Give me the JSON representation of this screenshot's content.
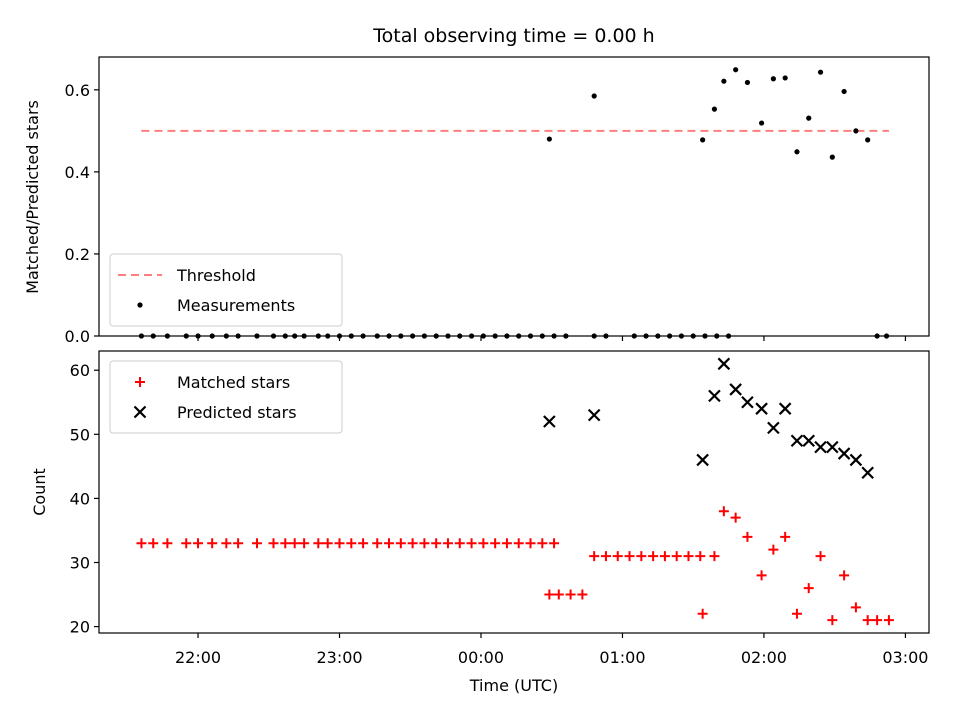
{
  "chart_data": [
    {
      "type": "scatter",
      "title": "Total observing time = 0.00 h",
      "ylabel": "Matched/Predicted stars",
      "xlabel": "",
      "xlim": [
        "21:18",
        "03:10"
      ],
      "ylim": [
        0,
        0.68
      ],
      "yticks": [
        0.0,
        0.2,
        0.4,
        0.6
      ],
      "ytick_labels": [
        "0.0",
        "0.2",
        "0.4",
        "0.6"
      ],
      "grid": false,
      "legend_position": "lower-left",
      "threshold": {
        "name": "Threshold",
        "y": 0.5,
        "x": [
          "21:36",
          "02:53"
        ],
        "color": "#ff7f7f",
        "style": "dashed"
      },
      "series": [
        {
          "name": "Measurements",
          "color": "#000000",
          "marker": "dot",
          "points": [
            [
              "21:36",
              0
            ],
            [
              "21:41",
              0
            ],
            [
              "21:47",
              0
            ],
            [
              "21:55",
              0
            ],
            [
              "22:00",
              0
            ],
            [
              "22:06",
              0
            ],
            [
              "22:12",
              0
            ],
            [
              "22:17",
              0
            ],
            [
              "22:25",
              0
            ],
            [
              "22:32",
              0
            ],
            [
              "22:37",
              0
            ],
            [
              "22:41",
              0
            ],
            [
              "22:45",
              0
            ],
            [
              "22:51",
              0
            ],
            [
              "22:55",
              0
            ],
            [
              "23:00",
              0
            ],
            [
              "23:05",
              0
            ],
            [
              "23:10",
              0
            ],
            [
              "23:16",
              0
            ],
            [
              "23:21",
              0
            ],
            [
              "23:26",
              0
            ],
            [
              "23:31",
              0
            ],
            [
              "23:36",
              0
            ],
            [
              "23:41",
              0
            ],
            [
              "23:46",
              0
            ],
            [
              "23:51",
              0
            ],
            [
              "23:56",
              0
            ],
            [
              "00:01",
              0
            ],
            [
              "00:06",
              0
            ],
            [
              "00:11",
              0
            ],
            [
              "00:16",
              0
            ],
            [
              "00:21",
              0
            ],
            [
              "00:26",
              0
            ],
            [
              "00:31",
              0
            ],
            [
              "00:36",
              0
            ],
            [
              "00:48",
              0
            ],
            [
              "00:53",
              0
            ],
            [
              "01:05",
              0
            ],
            [
              "01:10",
              0
            ],
            [
              "01:15",
              0
            ],
            [
              "01:20",
              0
            ],
            [
              "01:25",
              0
            ],
            [
              "01:30",
              0
            ],
            [
              "01:35",
              0
            ],
            [
              "01:40",
              0
            ],
            [
              "01:45",
              0
            ],
            [
              "02:48",
              0
            ],
            [
              "02:52",
              0
            ],
            [
              "00:29",
              0.48
            ],
            [
              "00:48",
              0.585
            ],
            [
              "01:34",
              0.478
            ],
            [
              "01:39",
              0.553
            ],
            [
              "01:43",
              0.621
            ],
            [
              "01:48",
              0.649
            ],
            [
              "01:53",
              0.618
            ],
            [
              "01:59",
              0.519
            ],
            [
              "02:04",
              0.627
            ],
            [
              "02:09",
              0.629
            ],
            [
              "02:19",
              0.531
            ],
            [
              "02:14",
              0.449
            ],
            [
              "02:24",
              0.643
            ],
            [
              "02:29",
              0.436
            ],
            [
              "02:34",
              0.596
            ],
            [
              "02:39",
              0.5
            ],
            [
              "02:44",
              0.478
            ]
          ]
        }
      ]
    },
    {
      "type": "scatter",
      "title": "",
      "xlabel": "Time (UTC)",
      "ylabel": "Count",
      "xlim": [
        "21:18",
        "03:10"
      ],
      "ylim": [
        19,
        63
      ],
      "yticks": [
        20,
        30,
        40,
        50,
        60
      ],
      "ytick_labels": [
        "20",
        "30",
        "40",
        "50",
        "60"
      ],
      "xticks": [
        "22:00",
        "23:00",
        "00:00",
        "01:00",
        "02:00",
        "03:00"
      ],
      "grid": false,
      "legend_position": "upper-left",
      "series": [
        {
          "name": "Matched stars",
          "color": "#ff0000",
          "marker": "plus",
          "points": [
            [
              "21:36",
              33
            ],
            [
              "21:41",
              33
            ],
            [
              "21:47",
              33
            ],
            [
              "21:55",
              33
            ],
            [
              "22:00",
              33
            ],
            [
              "22:06",
              33
            ],
            [
              "22:12",
              33
            ],
            [
              "22:17",
              33
            ],
            [
              "22:25",
              33
            ],
            [
              "22:32",
              33
            ],
            [
              "22:37",
              33
            ],
            [
              "22:41",
              33
            ],
            [
              "22:45",
              33
            ],
            [
              "22:51",
              33
            ],
            [
              "22:55",
              33
            ],
            [
              "23:00",
              33
            ],
            [
              "23:05",
              33
            ],
            [
              "23:10",
              33
            ],
            [
              "23:16",
              33
            ],
            [
              "23:21",
              33
            ],
            [
              "23:26",
              33
            ],
            [
              "23:31",
              33
            ],
            [
              "23:36",
              33
            ],
            [
              "23:41",
              33
            ],
            [
              "23:46",
              33
            ],
            [
              "23:51",
              33
            ],
            [
              "23:56",
              33
            ],
            [
              "00:01",
              33
            ],
            [
              "00:06",
              33
            ],
            [
              "00:11",
              33
            ],
            [
              "00:16",
              33
            ],
            [
              "00:21",
              33
            ],
            [
              "00:26",
              33
            ],
            [
              "00:31",
              33
            ],
            [
              "00:29",
              25
            ],
            [
              "00:33",
              25
            ],
            [
              "00:38",
              25
            ],
            [
              "00:43",
              25
            ],
            [
              "00:48",
              31
            ],
            [
              "00:53",
              31
            ],
            [
              "00:58",
              31
            ],
            [
              "01:03",
              31
            ],
            [
              "01:08",
              31
            ],
            [
              "01:13",
              31
            ],
            [
              "01:18",
              31
            ],
            [
              "01:23",
              31
            ],
            [
              "01:28",
              31
            ],
            [
              "01:33",
              31
            ],
            [
              "01:34",
              22
            ],
            [
              "01:39",
              31
            ],
            [
              "01:43",
              38
            ],
            [
              "01:48",
              37
            ],
            [
              "01:53",
              34
            ],
            [
              "01:59",
              28
            ],
            [
              "02:04",
              32
            ],
            [
              "02:09",
              34
            ],
            [
              "02:14",
              22
            ],
            [
              "02:19",
              26
            ],
            [
              "02:24",
              31
            ],
            [
              "02:29",
              21
            ],
            [
              "02:34",
              28
            ],
            [
              "02:39",
              23
            ],
            [
              "02:44",
              21
            ],
            [
              "02:48",
              21
            ],
            [
              "02:53",
              21
            ]
          ]
        },
        {
          "name": "Predicted stars",
          "color": "#000000",
          "marker": "x",
          "points": [
            [
              "00:29",
              52
            ],
            [
              "00:48",
              53
            ],
            [
              "01:34",
              46
            ],
            [
              "01:39",
              56
            ],
            [
              "01:43",
              61
            ],
            [
              "01:48",
              57
            ],
            [
              "01:53",
              55
            ],
            [
              "01:59",
              54
            ],
            [
              "02:04",
              51
            ],
            [
              "02:09",
              54
            ],
            [
              "02:14",
              49
            ],
            [
              "02:19",
              49
            ],
            [
              "02:24",
              48
            ],
            [
              "02:29",
              48
            ],
            [
              "02:34",
              47
            ],
            [
              "02:39",
              46
            ],
            [
              "02:44",
              44
            ]
          ]
        }
      ]
    }
  ]
}
